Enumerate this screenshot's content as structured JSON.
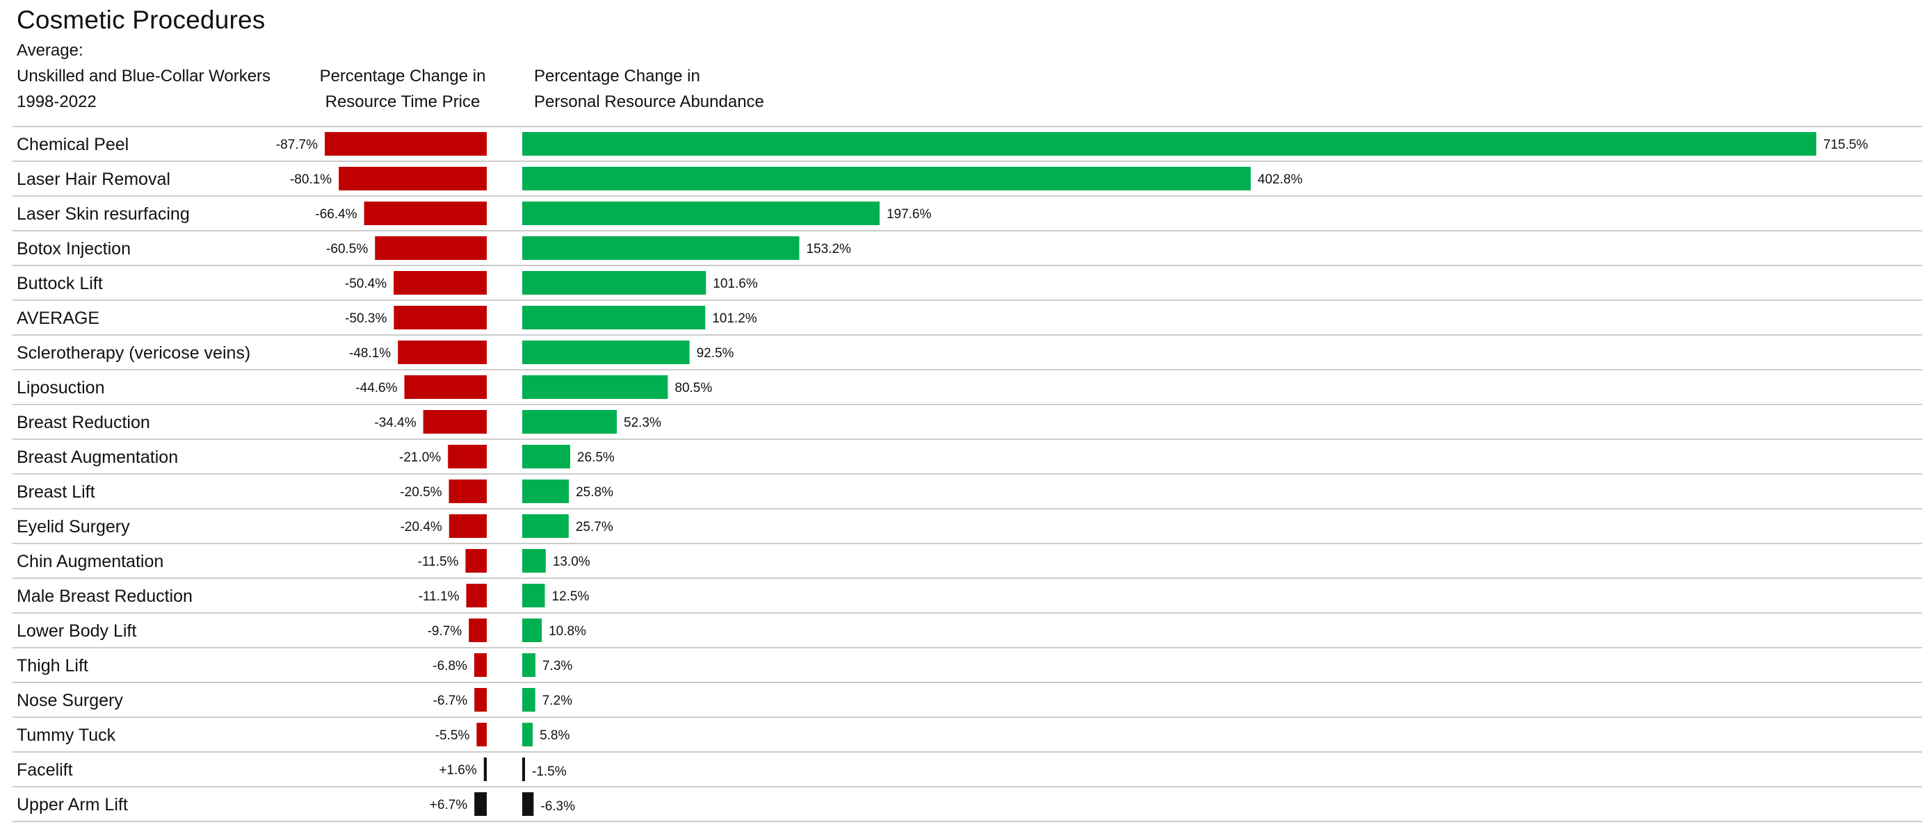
{
  "chart_data": {
    "type": "bar",
    "title": "Cosmetic Procedures",
    "header_left": [
      "Average:",
      "Unskilled and Blue-Collar Workers",
      "1998-2022"
    ],
    "header_mid": [
      "Percentage Change in",
      "Resource Time Price"
    ],
    "header_right": [
      "Percentage Change in",
      "Personal Resource Abundance"
    ],
    "categories": [
      "Chemical Peel",
      "Laser Hair Removal",
      "Laser Skin resurfacing",
      "Botox Injection",
      "Buttock Lift",
      "AVERAGE",
      "Sclerotherapy (vericose veins)",
      "Liposuction",
      "Breast Reduction",
      "Breast Augmentation",
      "Breast Lift",
      "Eyelid Surgery",
      "Chin Augmentation",
      "Male Breast Reduction",
      "Lower Body Lift",
      "Thigh Lift",
      "Nose Surgery",
      "Tummy Tuck",
      "Facelift",
      "Upper Arm Lift"
    ],
    "series": [
      {
        "name": "Percentage Change in Resource Time Price",
        "values": [
          -87.7,
          -80.1,
          -66.4,
          -60.5,
          -50.4,
          -50.3,
          -48.1,
          -44.6,
          -34.4,
          -21.0,
          -20.5,
          -20.4,
          -11.5,
          -11.1,
          -9.7,
          -6.8,
          -6.7,
          -5.5,
          1.6,
          6.7
        ],
        "labels": [
          "-87.7%",
          "-80.1%",
          "-66.4%",
          "-60.5%",
          "-50.4%",
          "-50.3%",
          "-48.1%",
          "-44.6%",
          "-34.4%",
          "-21.0%",
          "-20.5%",
          "-20.4%",
          "-11.5%",
          "-11.1%",
          "-9.7%",
          "-6.8%",
          "-6.7%",
          "-5.5%",
          "+1.6%",
          "+6.7%"
        ]
      },
      {
        "name": "Percentage Change in Personal Resource Abundance",
        "values": [
          715.5,
          402.8,
          197.6,
          153.2,
          101.6,
          101.2,
          92.5,
          80.5,
          52.3,
          26.5,
          25.8,
          25.7,
          13.0,
          12.5,
          10.8,
          7.3,
          7.2,
          5.8,
          -1.5,
          -6.3
        ],
        "labels": [
          "715.5%",
          "402.8%",
          "197.6%",
          "153.2%",
          "101.6%",
          "101.2%",
          "92.5%",
          "80.5%",
          "52.3%",
          "26.5%",
          "25.8%",
          "25.7%",
          "13.0%",
          "12.5%",
          "10.8%",
          "7.3%",
          "7.2%",
          "5.8%",
          "-1.5%",
          "-6.3%"
        ]
      }
    ],
    "colors": {
      "decrease": "#c00000",
      "increase": "#00b050",
      "adverse": "#111111",
      "rule": "#cccccc"
    },
    "grid": false,
    "legend": "none"
  }
}
